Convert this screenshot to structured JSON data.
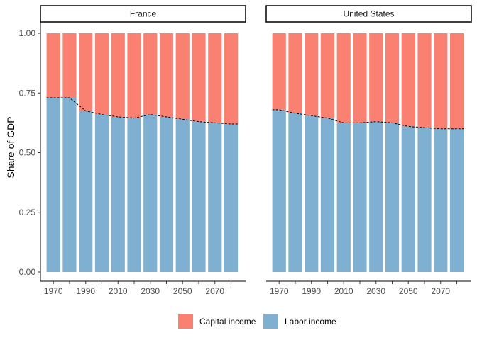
{
  "chart_data": {
    "type": "bar",
    "stacked": true,
    "ylabel": "Share of GDP",
    "xlabel": "",
    "ylim": [
      0,
      1
    ],
    "yticks": [
      0,
      0.25,
      0.5,
      0.75,
      1
    ],
    "ytick_labels": [
      "0.00",
      "0.25",
      "0.50",
      "0.75",
      "1.00"
    ],
    "xticks_labeled": [
      "1970",
      "1990",
      "2010",
      "2030",
      "2050",
      "2070"
    ],
    "legend_position": "bottom",
    "colors": {
      "capital": "#fa8072",
      "labor": "#7fafd1"
    },
    "facets": [
      {
        "title": "France",
        "x": [
          1970,
          1980,
          1990,
          2000,
          2010,
          2020,
          2030,
          2040,
          2050,
          2060,
          2070,
          2080
        ],
        "series": [
          {
            "name": "Labor income",
            "values": [
              0.73,
              0.73,
              0.675,
              0.66,
              0.65,
              0.645,
              0.66,
              0.65,
              0.64,
              0.63,
              0.625,
              0.62
            ]
          },
          {
            "name": "Capital income",
            "values": [
              0.27,
              0.27,
              0.325,
              0.34,
              0.35,
              0.355,
              0.34,
              0.35,
              0.36,
              0.37,
              0.375,
              0.38
            ]
          }
        ]
      },
      {
        "title": "United States",
        "x": [
          1970,
          1980,
          1990,
          2000,
          2010,
          2020,
          2030,
          2040,
          2050,
          2060,
          2070,
          2080
        ],
        "series": [
          {
            "name": "Labor income",
            "values": [
              0.68,
              0.665,
              0.655,
              0.645,
              0.625,
              0.625,
              0.63,
              0.625,
              0.61,
              0.605,
              0.6,
              0.6
            ]
          },
          {
            "name": "Capital income",
            "values": [
              0.32,
              0.335,
              0.345,
              0.355,
              0.375,
              0.375,
              0.37,
              0.375,
              0.39,
              0.395,
              0.4,
              0.4
            ]
          }
        ]
      }
    ],
    "legend": [
      {
        "name": "Capital income",
        "color": "#fa8072"
      },
      {
        "name": "Labor income",
        "color": "#7fafd1"
      }
    ]
  }
}
